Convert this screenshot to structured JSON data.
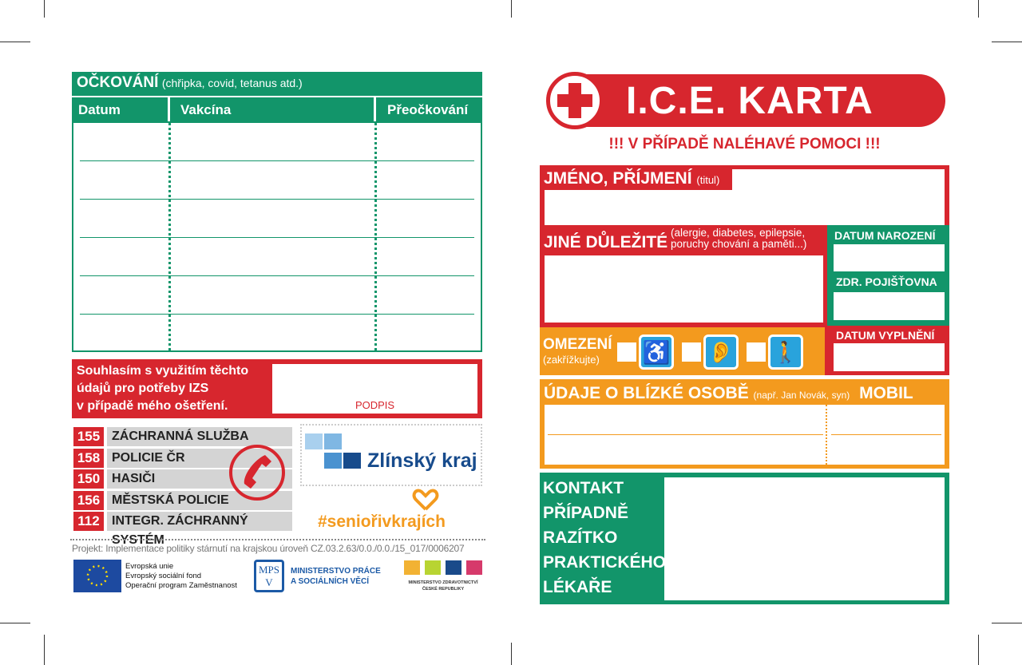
{
  "vaccination": {
    "title": "OČKOVÁNÍ",
    "subtitle": "(chřipka, covid, tetanus atd.)",
    "columns": [
      "Datum",
      "Vakcína",
      "Přeočkování"
    ]
  },
  "consent": {
    "text_lines": [
      "Souhlasím s využitím těchto",
      "údajů pro potřeby IZS",
      "v případě mého ošetření."
    ],
    "signature_label": "PODPIS"
  },
  "emergency_numbers": [
    {
      "number": "155",
      "label": "ZÁCHRANNÁ SLUŽBA"
    },
    {
      "number": "158",
      "label": "POLICIE ČR"
    },
    {
      "number": "150",
      "label": "HASIČI"
    },
    {
      "number": "156",
      "label": "MĚSTSKÁ POLICIE"
    },
    {
      "number": "112",
      "label": "INTEGR. ZÁCHRANNÝ SYSTÉM"
    }
  ],
  "zlin_logo": "Zlínský kraj",
  "hashtag": "#seniořivkrajích",
  "project_text": "Projekt: Implementace politiky stárnutí na krajskou úroveň CZ.03.2.63/0.0./0.0./15_017/0006207",
  "eu_logo": {
    "lines": [
      "Evropská unie",
      "Evropský sociální fond",
      "Operační program Zaměstnanost"
    ]
  },
  "mpsv_logo": {
    "mark": "MPSV",
    "lines": [
      "MINISTERSTVO PRÁCE",
      "A SOCIÁLNÍCH VĚCÍ"
    ]
  },
  "mz_logo": {
    "lines": [
      "MINISTERSTVO ZDRAVOTNICTVÍ",
      "ČESKÉ REPUBLIKY"
    ]
  },
  "card": {
    "title": "I.C.E. KARTA",
    "subtitle": "!!! V PŘÍPADĚ NALÉHAVÉ POMOCI !!!",
    "name_label": "JMÉNO, PŘÍJMENÍ",
    "name_hint": "(titul)",
    "other_label": "JINÉ DŮLEŽITÉ",
    "other_hint_1": "(alergie, diabetes, epilepsie,",
    "other_hint_2": "poruchy chování a paměti...)",
    "birth_label": "DATUM NAROZENÍ",
    "insurance_label": "ZDR. POJIŠŤOVNA",
    "filled_label": "DATUM VYPLNĚNÍ",
    "limits_label": "OMEZENÍ",
    "limits_hint": "(zakřížkujte)",
    "limit_icons": [
      "wheelchair-icon",
      "hearing-impaired-icon",
      "blind-person-icon"
    ],
    "contact_label": "ÚDAJE O BLÍZKÉ OSOBĚ",
    "contact_hint": "(např. Jan Novák, syn)",
    "mobile_label": "MOBIL",
    "doctor_lines": [
      "KONTAKT",
      "PŘÍPADNĚ",
      "RAZÍTKO",
      "PRAKTICKÉHO",
      "LÉKAŘE"
    ]
  },
  "colors": {
    "green": "#12956a",
    "red": "#d7262e",
    "orange": "#f39a1e",
    "blue": "#29a3dc"
  }
}
